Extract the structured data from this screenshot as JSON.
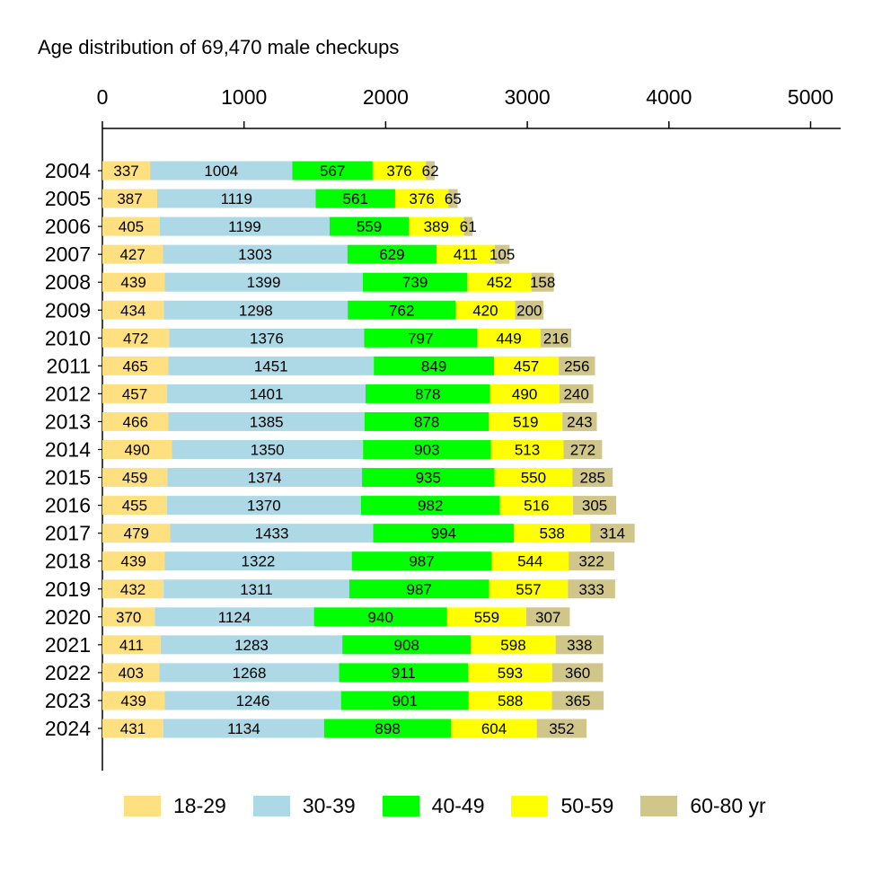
{
  "chart_data": {
    "type": "bar",
    "orientation": "horizontal",
    "stacked": true,
    "title": "Age distribution of 69,470 male checkups",
    "xlim": [
      0,
      5200
    ],
    "xticks": [
      0,
      1000,
      2000,
      3000,
      4000,
      5000
    ],
    "x_axis_position": "top",
    "grid": false,
    "legend_position": "bottom",
    "categories": [
      "2004",
      "2005",
      "2006",
      "2007",
      "2008",
      "2009",
      "2010",
      "2011",
      "2012",
      "2013",
      "2014",
      "2015",
      "2016",
      "2017",
      "2018",
      "2019",
      "2020",
      "2021",
      "2022",
      "2023",
      "2024"
    ],
    "series": [
      {
        "name": "18-29",
        "color": "#ffe080",
        "values": [
          337,
          387,
          405,
          427,
          439,
          434,
          472,
          465,
          457,
          466,
          490,
          459,
          455,
          479,
          439,
          432,
          370,
          411,
          403,
          439,
          431
        ]
      },
      {
        "name": "30-39",
        "color": "#add8e6",
        "values": [
          1004,
          1119,
          1199,
          1303,
          1399,
          1298,
          1376,
          1451,
          1401,
          1385,
          1350,
          1374,
          1370,
          1433,
          1322,
          1311,
          1124,
          1283,
          1268,
          1246,
          1134
        ]
      },
      {
        "name": "40-49",
        "color": "#00ff00",
        "values": [
          567,
          561,
          559,
          629,
          739,
          762,
          797,
          849,
          878,
          878,
          903,
          935,
          982,
          994,
          987,
          987,
          940,
          908,
          911,
          901,
          898
        ]
      },
      {
        "name": "50-59",
        "color": "#ffff00",
        "values": [
          376,
          376,
          389,
          411,
          452,
          420,
          449,
          457,
          490,
          519,
          513,
          550,
          516,
          538,
          544,
          557,
          559,
          598,
          593,
          588,
          604
        ]
      },
      {
        "name": "60-80 yr",
        "color": "#d0c68a",
        "values": [
          62,
          65,
          61,
          105,
          158,
          200,
          216,
          256,
          240,
          243,
          272,
          285,
          305,
          314,
          322,
          333,
          307,
          338,
          360,
          365,
          352
        ]
      }
    ]
  }
}
